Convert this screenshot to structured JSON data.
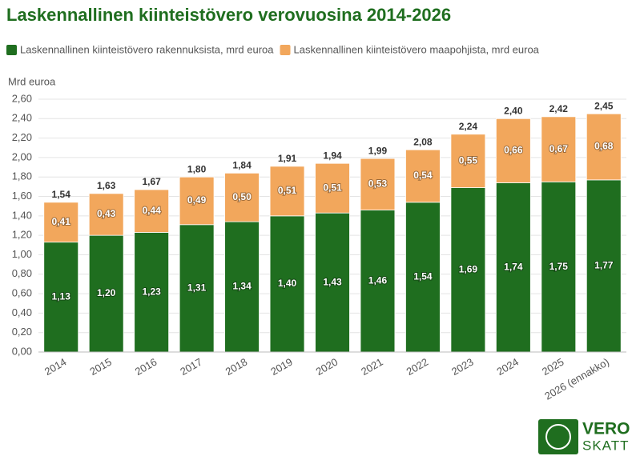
{
  "chart_data": {
    "type": "stacked-bar",
    "title": "Laskennallinen kiinteistövero verovuosina 2014-2026",
    "y_label": "Mrd euroa",
    "categories": [
      "2014",
      "2015",
      "2016",
      "2017",
      "2018",
      "2019",
      "2020",
      "2021",
      "2022",
      "2023",
      "2024",
      "2025",
      "2026 (ennakko)"
    ],
    "series": [
      {
        "name": "Laskennallinen kiinteistövero rakennuksista, mrd euroa",
        "color": "#1f6e1f",
        "values": [
          1.13,
          1.2,
          1.23,
          1.31,
          1.34,
          1.4,
          1.43,
          1.46,
          1.54,
          1.69,
          1.74,
          1.75,
          1.77
        ],
        "value_labels": [
          "1,13",
          "1,20",
          "1,23",
          "1,31",
          "1,34",
          "1,40",
          "1,43",
          "1,46",
          "1,54",
          "1,69",
          "1,74",
          "1,75",
          "1,77"
        ]
      },
      {
        "name": "Laskennallinen kiinteistövero maapohjista, mrd euroa",
        "color": "#f2a75c",
        "values": [
          0.41,
          0.43,
          0.44,
          0.49,
          0.5,
          0.51,
          0.51,
          0.53,
          0.54,
          0.55,
          0.66,
          0.67,
          0.68
        ],
        "value_labels": [
          "0,41",
          "0,43",
          "0,44",
          "0,49",
          "0,50",
          "0,51",
          "0,51",
          "0,53",
          "0,54",
          "0,55",
          "0,66",
          "0,67",
          "0,68"
        ]
      }
    ],
    "totals": [
      1.54,
      1.63,
      1.67,
      1.8,
      1.84,
      1.91,
      1.94,
      1.99,
      2.08,
      2.24,
      2.4,
      2.42,
      2.45
    ],
    "total_labels": [
      "1,54",
      "1,63",
      "1,67",
      "1,80",
      "1,84",
      "1,91",
      "1,94",
      "1,99",
      "2,08",
      "2,24",
      "2,40",
      "2,42",
      "2,45"
    ],
    "ylim": [
      0,
      2.6
    ],
    "yticks": [
      {
        "value": 0,
        "label": "0,00"
      },
      {
        "value": 0.2,
        "label": "0,20"
      },
      {
        "value": 0.4,
        "label": "0,40"
      },
      {
        "value": 0.6,
        "label": "0,60"
      },
      {
        "value": 0.8,
        "label": "0,80"
      },
      {
        "value": 1.0,
        "label": "1,00"
      },
      {
        "value": 1.2,
        "label": "1,20"
      },
      {
        "value": 1.4,
        "label": "1,40"
      },
      {
        "value": 1.6,
        "label": "1,60"
      },
      {
        "value": 1.8,
        "label": "1,80"
      },
      {
        "value": 2.0,
        "label": "2,00"
      },
      {
        "value": 2.2,
        "label": "2,20"
      },
      {
        "value": 2.4,
        "label": "2,40"
      },
      {
        "value": 2.6,
        "label": "2,60"
      }
    ],
    "grid": true
  },
  "logo": {
    "line1": "VERO",
    "line2": "SKATT"
  }
}
